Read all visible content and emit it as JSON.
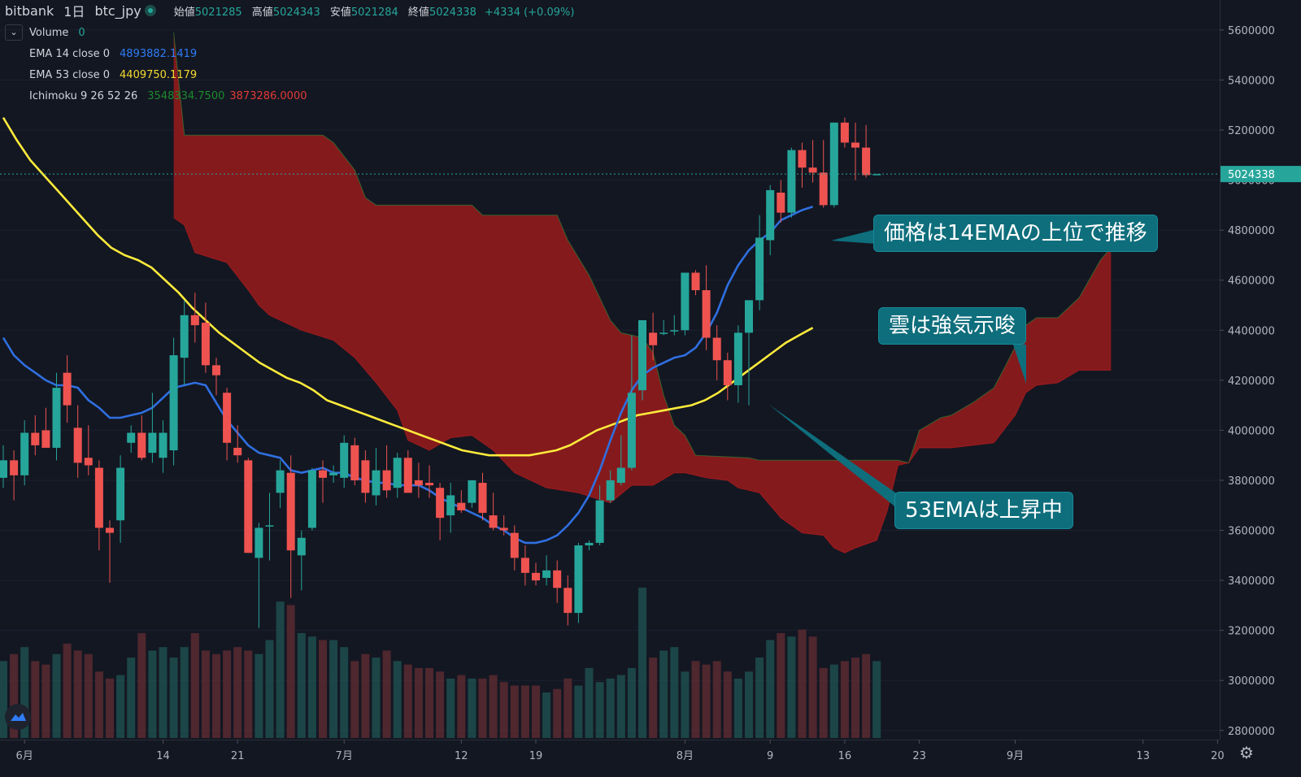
{
  "header": {
    "exchange": "bitbank",
    "interval": "1日",
    "symbol": "btc_jpy",
    "open_label": "始値",
    "open": "5021285",
    "high_label": "高値",
    "high": "5024343",
    "low_label": "安値",
    "low": "5021284",
    "close_label": "終値",
    "close": "5024338",
    "change": "+4334 (+0.09%)"
  },
  "indicators": {
    "volume_label": "Volume",
    "volume_value": "0",
    "ema14_label": "EMA 14 close 0",
    "ema14_value": "4893882.1419",
    "ema53_label": "EMA 53 close 0",
    "ema53_value": "4409750.1179",
    "ichimoku_label": "Ichimoku 9 26 52 26",
    "ichimoku_value1": "3548334.7500",
    "ichimoku_value2": "3873286.0000"
  },
  "icons": {
    "collapse": "chevron-down-icon",
    "logo": "tradingview-logo-icon",
    "settings": "gear-icon"
  },
  "annotations": {
    "ema14_note": "価格は14EMAの上位で推移",
    "cloud_note": "雲は強気示唆",
    "ema53_note": "53EMAは上昇中"
  },
  "colors": {
    "background": "#131722",
    "up": "#26a69a",
    "down": "#ef5350",
    "ema14": "#2962ff",
    "ema53": "#ffeb3b",
    "cloud_bear": "#8b1a1e",
    "cloud_bull": "#1b4a22",
    "callout": "#0e6e7c"
  },
  "chart_data": {
    "type": "candlestick",
    "y_axis_ticks": [
      2800000,
      3000000,
      3200000,
      3400000,
      3600000,
      3800000,
      4000000,
      4200000,
      4400000,
      4600000,
      4800000,
      5000000,
      5200000,
      5400000,
      5600000
    ],
    "y_axis_labels": [
      "2800000",
      "3000000",
      "3200000",
      "3400000",
      "3600000",
      "3800000",
      "4000000",
      "4200000",
      "4400000",
      "4600000",
      "4800000",
      "5000000",
      "5200000",
      "5400000",
      "5600000"
    ],
    "ylim": [
      2770000,
      5720000
    ],
    "last_price": "5024338",
    "x_axis_labels": [
      {
        "day": 2,
        "label": "6月"
      },
      {
        "day": 15,
        "label": "14"
      },
      {
        "day": 22,
        "label": "21"
      },
      {
        "day": 32,
        "label": "7月"
      },
      {
        "day": 43,
        "label": "12"
      },
      {
        "day": 50,
        "label": "19"
      },
      {
        "day": 64,
        "label": "8月"
      },
      {
        "day": 72,
        "label": "9"
      },
      {
        "day": 79,
        "label": "16"
      },
      {
        "day": 86,
        "label": "23"
      },
      {
        "day": 95,
        "label": "9月"
      },
      {
        "day": 107,
        "label": "13"
      },
      {
        "day": 114,
        "label": "20"
      }
    ],
    "candles": [
      [
        3810000,
        3940000,
        3770000,
        3880000
      ],
      [
        3880000,
        3920000,
        3720000,
        3820000
      ],
      [
        3820000,
        4040000,
        3780000,
        3990000
      ],
      [
        3990000,
        4060000,
        3900000,
        3940000
      ],
      [
        4000000,
        4090000,
        3930000,
        3930000
      ],
      [
        3930000,
        4230000,
        3880000,
        4170000
      ],
      [
        4230000,
        4300000,
        4030000,
        4100000
      ],
      [
        4010000,
        4100000,
        3810000,
        3870000
      ],
      [
        3890000,
        4020000,
        3820000,
        3860000
      ],
      [
        3850000,
        3880000,
        3520000,
        3610000
      ],
      [
        3610000,
        3640000,
        3390000,
        3590000
      ],
      [
        3640000,
        3900000,
        3550000,
        3850000
      ],
      [
        3950000,
        4020000,
        3910000,
        3990000
      ],
      [
        3990000,
        4060000,
        3880000,
        3890000
      ],
      [
        3910000,
        4150000,
        3870000,
        3990000
      ],
      [
        3890000,
        4040000,
        3830000,
        3990000
      ],
      [
        3920000,
        4370000,
        3860000,
        4300000
      ],
      [
        4290000,
        4520000,
        4180000,
        4460000
      ],
      [
        4460000,
        4550000,
        4350000,
        4420000
      ],
      [
        4430000,
        4510000,
        4230000,
        4260000
      ],
      [
        4260000,
        4290000,
        4140000,
        4220000
      ],
      [
        4150000,
        4170000,
        3880000,
        3950000
      ],
      [
        3930000,
        4020000,
        3870000,
        3900000
      ],
      [
        3880000,
        3890000,
        3510000,
        3510000
      ],
      [
        3490000,
        3630000,
        3210000,
        3610000
      ],
      [
        3620000,
        3750000,
        3480000,
        3620000
      ],
      [
        3750000,
        3880000,
        3690000,
        3840000
      ],
      [
        3830000,
        3900000,
        3330000,
        3520000
      ],
      [
        3500000,
        3600000,
        3360000,
        3570000
      ],
      [
        3610000,
        3850000,
        3600000,
        3840000
      ],
      [
        3840000,
        3880000,
        3710000,
        3810000
      ],
      [
        3820000,
        3860000,
        3790000,
        3830000
      ],
      [
        3810000,
        3980000,
        3770000,
        3950000
      ],
      [
        3940000,
        3970000,
        3780000,
        3800000
      ],
      [
        3880000,
        3920000,
        3710000,
        3750000
      ],
      [
        3740000,
        3930000,
        3700000,
        3840000
      ],
      [
        3840000,
        3940000,
        3730000,
        3760000
      ],
      [
        3770000,
        3910000,
        3730000,
        3890000
      ],
      [
        3890000,
        3920000,
        3770000,
        3750000
      ],
      [
        3800000,
        3870000,
        3730000,
        3780000
      ],
      [
        3790000,
        3860000,
        3730000,
        3780000
      ],
      [
        3770000,
        3790000,
        3560000,
        3650000
      ],
      [
        3660000,
        3790000,
        3590000,
        3740000
      ],
      [
        3710000,
        3760000,
        3670000,
        3680000
      ],
      [
        3710000,
        3800000,
        3690000,
        3800000
      ],
      [
        3790000,
        3830000,
        3640000,
        3670000
      ],
      [
        3660000,
        3750000,
        3600000,
        3610000
      ],
      [
        3610000,
        3660000,
        3580000,
        3600000
      ],
      [
        3590000,
        3620000,
        3440000,
        3490000
      ],
      [
        3490000,
        3540000,
        3380000,
        3430000
      ],
      [
        3430000,
        3470000,
        3380000,
        3400000
      ],
      [
        3410000,
        3500000,
        3380000,
        3440000
      ],
      [
        3440000,
        3480000,
        3310000,
        3370000
      ],
      [
        3370000,
        3420000,
        3220000,
        3270000
      ],
      [
        3270000,
        3550000,
        3230000,
        3540000
      ],
      [
        3540000,
        3560000,
        3520000,
        3550000
      ],
      [
        3550000,
        3780000,
        3540000,
        3720000
      ],
      [
        3720000,
        3840000,
        3710000,
        3800000
      ],
      [
        3790000,
        3980000,
        3780000,
        3850000
      ],
      [
        3850000,
        4380000,
        3840000,
        4150000
      ],
      [
        4160000,
        4430000,
        4120000,
        4440000
      ],
      [
        4390000,
        4470000,
        4280000,
        4340000
      ],
      [
        4390000,
        4440000,
        4380000,
        4390000
      ],
      [
        4400000,
        4460000,
        4380000,
        4400000
      ],
      [
        4400000,
        4630000,
        4380000,
        4630000
      ],
      [
        4630000,
        4640000,
        4540000,
        4560000
      ],
      [
        4560000,
        4660000,
        4320000,
        4370000
      ],
      [
        4370000,
        4420000,
        4200000,
        4280000
      ],
      [
        4280000,
        4310000,
        4120000,
        4180000
      ],
      [
        4180000,
        4420000,
        4110000,
        4390000
      ],
      [
        4390000,
        4510000,
        4100000,
        4520000
      ],
      [
        4520000,
        4860000,
        4480000,
        4770000
      ],
      [
        4760000,
        4980000,
        4700000,
        4960000
      ],
      [
        4950000,
        5000000,
        4830000,
        4870000
      ],
      [
        4870000,
        5130000,
        4850000,
        5120000
      ],
      [
        5120000,
        5150000,
        4970000,
        5050000
      ],
      [
        5050000,
        5160000,
        4990000,
        5030000
      ],
      [
        5030000,
        5160000,
        4890000,
        4900000
      ],
      [
        4900000,
        5230000,
        4890000,
        5230000
      ],
      [
        5230000,
        5250000,
        5130000,
        5150000
      ],
      [
        5150000,
        5230000,
        5000000,
        5130000
      ],
      [
        5130000,
        5220000,
        5010000,
        5020000
      ],
      [
        5021285,
        5024343,
        5021284,
        5024338
      ]
    ],
    "volume": [
      22,
      24,
      26,
      22,
      21,
      24,
      27,
      25,
      24,
      19,
      17,
      18,
      23,
      30,
      25,
      26,
      23,
      26,
      30,
      25,
      24,
      25,
      26,
      25,
      24,
      28,
      39,
      38,
      30,
      29,
      28,
      28,
      26,
      22,
      24,
      23,
      25,
      22,
      21,
      20,
      20,
      19,
      17,
      18,
      17,
      17,
      18,
      16,
      15,
      15,
      15,
      13,
      14,
      17,
      15,
      20,
      16,
      17,
      18,
      20,
      43,
      23,
      25,
      26,
      19,
      22,
      21,
      22,
      19,
      17,
      19,
      23,
      28,
      30,
      29,
      31,
      29,
      20,
      21,
      22,
      23,
      24,
      22,
      0
    ],
    "ema14": [
      4370000,
      4300000,
      4260000,
      4230000,
      4200000,
      4180000,
      4180000,
      4170000,
      4120000,
      4090000,
      4050000,
      4050000,
      4060000,
      4070000,
      4090000,
      4130000,
      4170000,
      4180000,
      4190000,
      4180000,
      4110000,
      4040000,
      3990000,
      3940000,
      3910000,
      3900000,
      3890000,
      3840000,
      3830000,
      3840000,
      3850000,
      3830000,
      3830000,
      3810000,
      3800000,
      3790000,
      3790000,
      3780000,
      3780000,
      3780000,
      3760000,
      3730000,
      3710000,
      3690000,
      3670000,
      3650000,
      3620000,
      3600000,
      3570000,
      3550000,
      3550000,
      3560000,
      3580000,
      3620000,
      3670000,
      3740000,
      3840000,
      3960000,
      4070000,
      4160000,
      4220000,
      4250000,
      4270000,
      4290000,
      4300000,
      4330000,
      4390000,
      4470000,
      4580000,
      4660000,
      4720000,
      4760000,
      4790000,
      4840000,
      4860000,
      4880000,
      4893882
    ],
    "ema53": [
      5250000,
      5160000,
      5080000,
      5020000,
      4960000,
      4900000,
      4840000,
      4780000,
      4730000,
      4700000,
      4680000,
      4650000,
      4600000,
      4550000,
      4490000,
      4440000,
      4390000,
      4350000,
      4310000,
      4270000,
      4240000,
      4210000,
      4190000,
      4160000,
      4120000,
      4100000,
      4080000,
      4060000,
      4040000,
      4020000,
      4000000,
      3980000,
      3960000,
      3940000,
      3920000,
      3910000,
      3900000,
      3900000,
      3900000,
      3900000,
      3910000,
      3920000,
      3940000,
      3970000,
      4000000,
      4020000,
      4040000,
      4060000,
      4070000,
      4080000,
      4090000,
      4100000,
      4120000,
      4150000,
      4190000,
      4230000,
      4270000,
      4310000,
      4350000,
      4380000,
      4409750
    ],
    "cloud_upper": [
      [
        16,
        5590000
      ],
      [
        17,
        5180000
      ],
      [
        30,
        5180000
      ],
      [
        31,
        5150000
      ],
      [
        33,
        5040000
      ],
      [
        34,
        4930000
      ],
      [
        35,
        4900000
      ],
      [
        44,
        4900000
      ],
      [
        45,
        4860000
      ],
      [
        52,
        4860000
      ],
      [
        53,
        4760000
      ],
      [
        55,
        4620000
      ],
      [
        57,
        4440000
      ],
      [
        58,
        4390000
      ],
      [
        60,
        4370000
      ],
      [
        61,
        4310000
      ],
      [
        62,
        4140000
      ],
      [
        63,
        4020000
      ],
      [
        64,
        3980000
      ],
      [
        65,
        3900000
      ],
      [
        70,
        3890000
      ],
      [
        71,
        3880000
      ],
      [
        84,
        3880000
      ],
      [
        85,
        3870000
      ],
      [
        86,
        4000000
      ],
      [
        88,
        4050000
      ],
      [
        89,
        4060000
      ],
      [
        91,
        4110000
      ],
      [
        93,
        4170000
      ],
      [
        94,
        4250000
      ],
      [
        96,
        4420000
      ],
      [
        97,
        4450000
      ],
      [
        99,
        4450000
      ],
      [
        101,
        4530000
      ],
      [
        103,
        4680000
      ],
      [
        104,
        4730000
      ]
    ],
    "cloud_lower": [
      [
        16,
        4850000
      ],
      [
        17,
        4820000
      ],
      [
        18,
        4710000
      ],
      [
        21,
        4670000
      ],
      [
        23,
        4560000
      ],
      [
        24,
        4500000
      ],
      [
        25,
        4460000
      ],
      [
        28,
        4400000
      ],
      [
        31,
        4360000
      ],
      [
        33,
        4290000
      ],
      [
        35,
        4190000
      ],
      [
        37,
        4080000
      ],
      [
        38,
        3960000
      ],
      [
        40,
        3920000
      ],
      [
        42,
        3970000
      ],
      [
        44,
        3980000
      ],
      [
        46,
        3920000
      ],
      [
        48,
        3830000
      ],
      [
        51,
        3770000
      ],
      [
        54,
        3750000
      ],
      [
        57,
        3710000
      ],
      [
        59,
        3780000
      ],
      [
        61,
        3780000
      ],
      [
        63,
        3830000
      ],
      [
        64,
        3830000
      ],
      [
        66,
        3810000
      ],
      [
        68,
        3800000
      ],
      [
        69,
        3770000
      ],
      [
        71,
        3750000
      ],
      [
        73,
        3650000
      ],
      [
        75,
        3590000
      ],
      [
        77,
        3580000
      ],
      [
        78,
        3530000
      ],
      [
        79,
        3510000
      ],
      [
        80,
        3530000
      ],
      [
        82,
        3560000
      ],
      [
        83,
        3680000
      ],
      [
        84,
        3860000
      ],
      [
        85,
        3870000
      ],
      [
        86,
        3930000
      ],
      [
        89,
        3930000
      ],
      [
        91,
        3940000
      ],
      [
        93,
        3950000
      ],
      [
        95,
        4060000
      ],
      [
        96,
        4150000
      ],
      [
        97,
        4180000
      ],
      [
        99,
        4190000
      ],
      [
        101,
        4240000
      ],
      [
        104,
        4240000
      ]
    ]
  }
}
